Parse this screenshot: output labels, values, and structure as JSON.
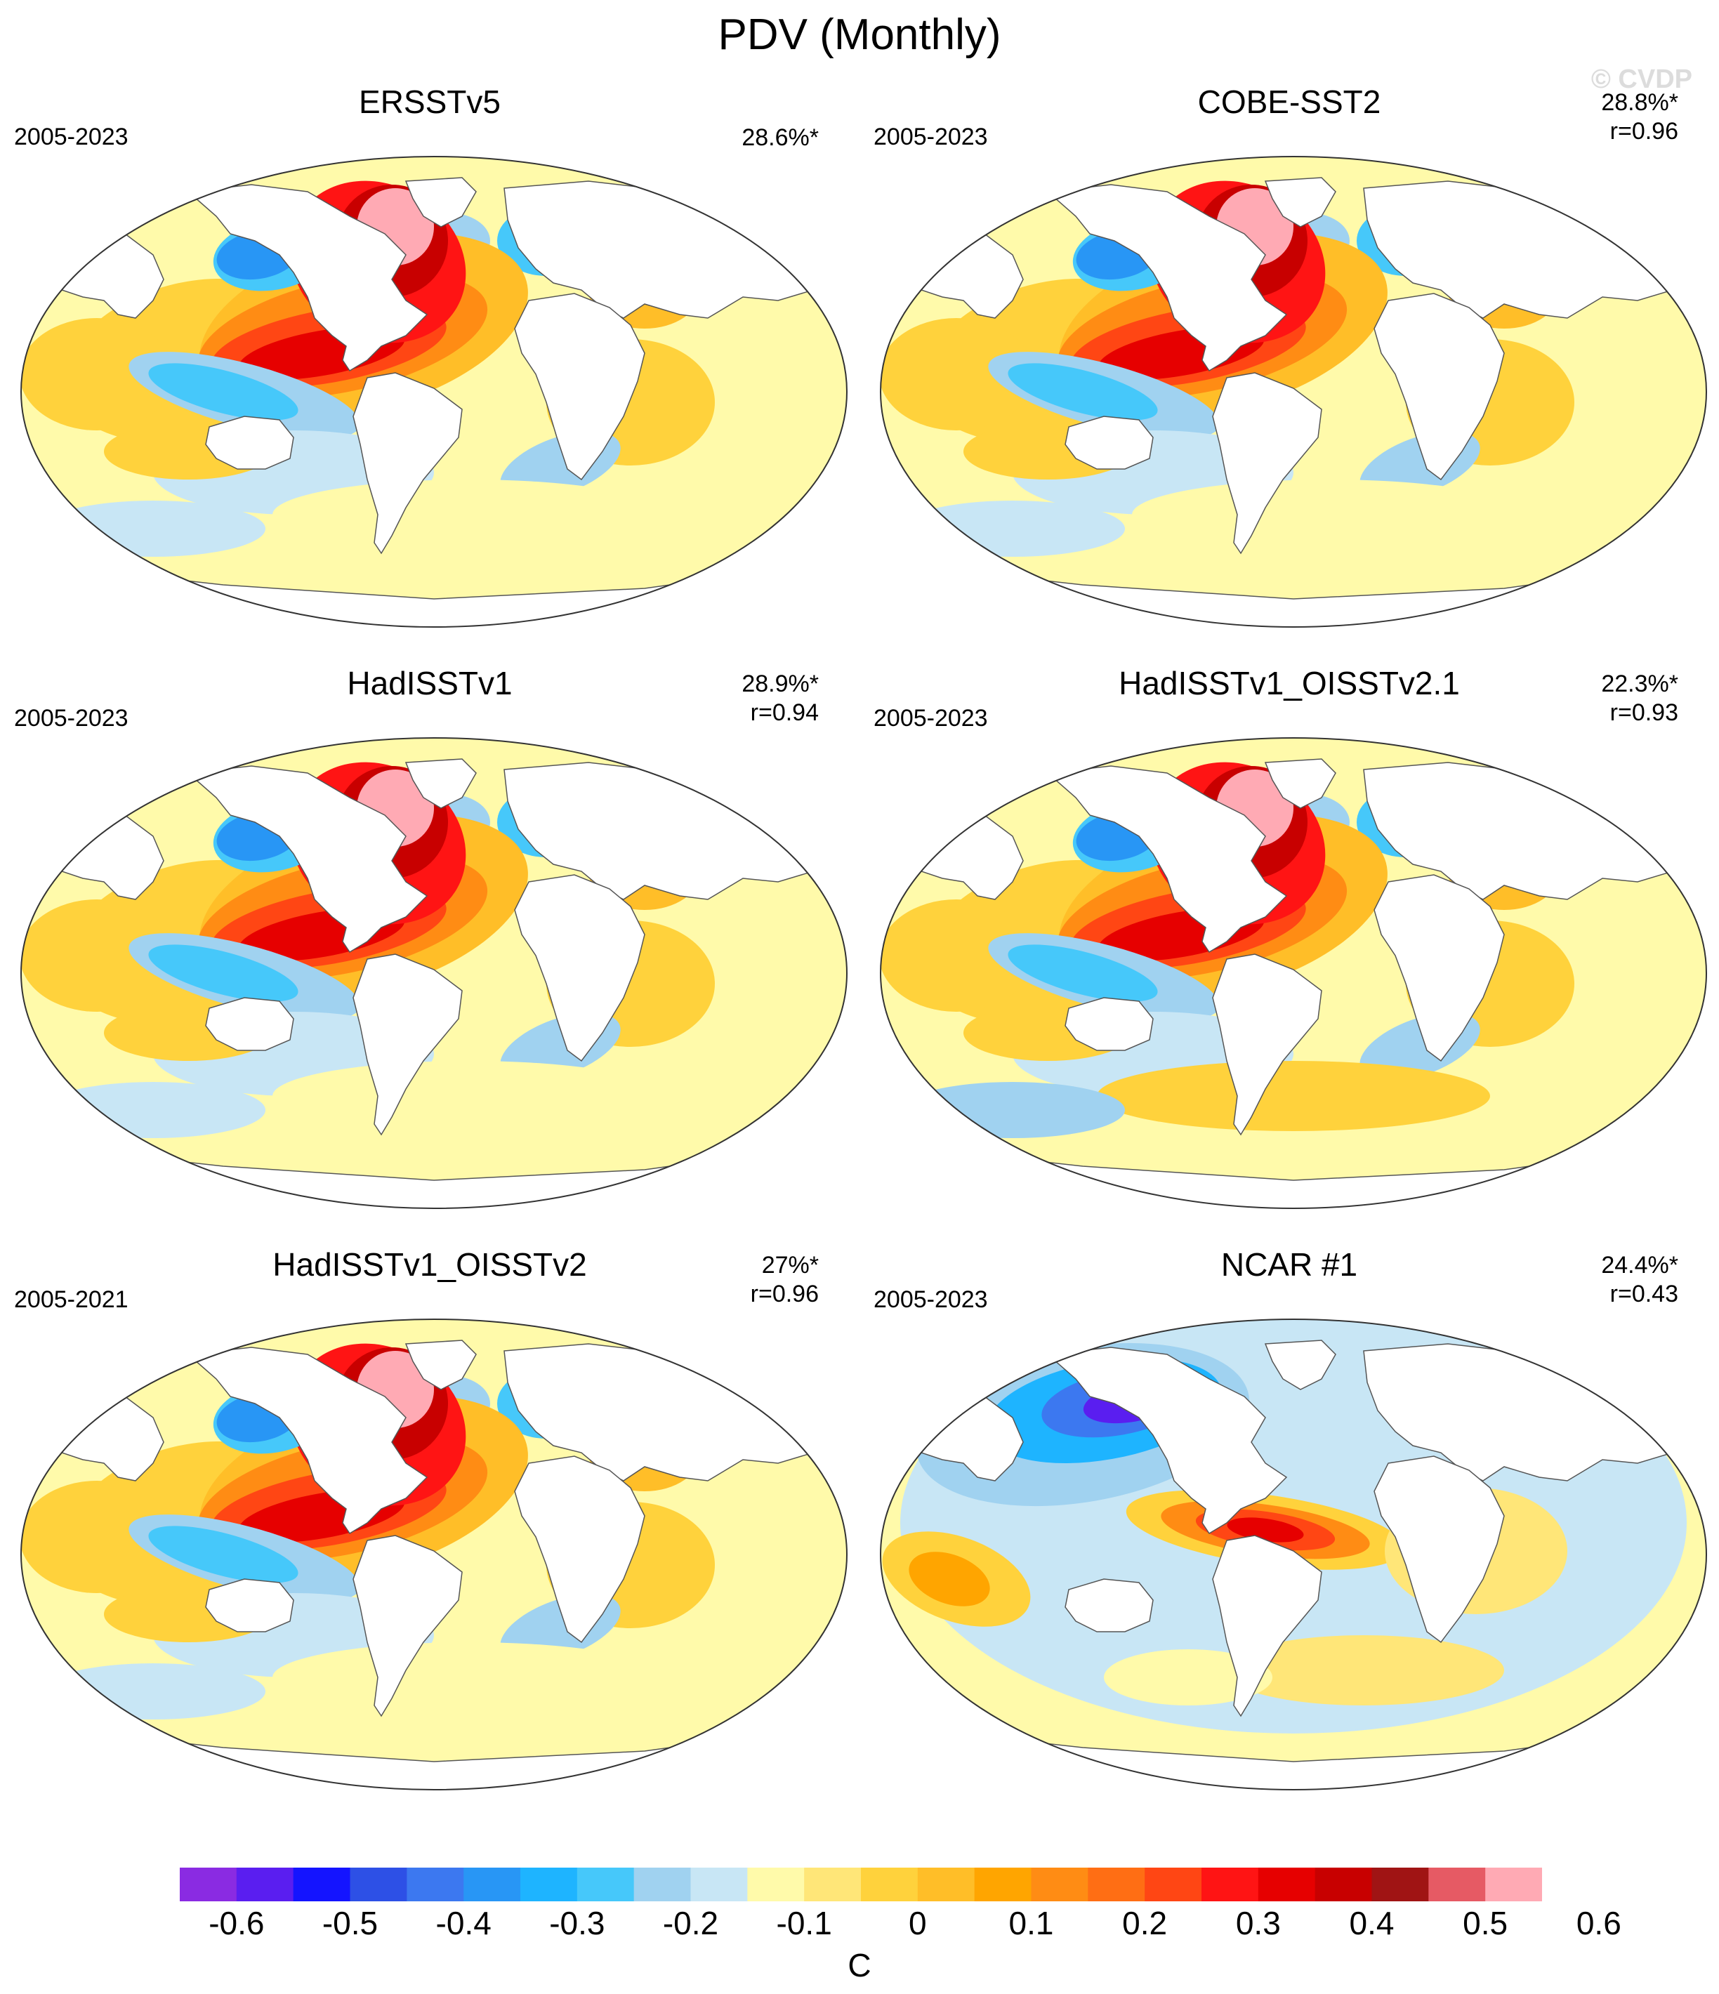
{
  "title": "PDV (Monthly)",
  "watermark": "© CVDP",
  "panels": [
    {
      "name": "ERSSTv5",
      "period": "2005-2023",
      "pct": "28.6%*",
      "r": "",
      "variant": "obs"
    },
    {
      "name": "COBE-SST2",
      "period": "2005-2023",
      "pct": "28.8%*",
      "r": "r=0.96",
      "variant": "obs"
    },
    {
      "name": "HadISSTv1",
      "period": "2005-2023",
      "pct": "28.9%*",
      "r": "r=0.94",
      "variant": "obs"
    },
    {
      "name": "HadISSTv1_OISSTv2.1",
      "period": "2005-2023",
      "pct": "22.3%*",
      "r": "r=0.93",
      "variant": "noisy"
    },
    {
      "name": "HadISSTv1_OISSTv2",
      "period": "2005-2021",
      "pct": "27%*",
      "r": "r=0.96",
      "variant": "obs"
    },
    {
      "name": "NCAR #1",
      "period": "2005-2023",
      "pct": "24.4%*",
      "r": "r=0.43",
      "variant": "model"
    }
  ],
  "colorbar": {
    "colors": [
      "#8a2be2",
      "#5a1ef0",
      "#1414ff",
      "#2d50e6",
      "#3c78f0",
      "#2896f5",
      "#1eb4ff",
      "#46c8fa",
      "#a0d2f0",
      "#c8e6f5",
      "#fffaaa",
      "#ffe678",
      "#ffd23c",
      "#ffbe28",
      "#ffa500",
      "#ff8c14",
      "#ff6e14",
      "#ff4614",
      "#ff1414",
      "#e60000",
      "#c80000",
      "#a01414",
      "#e65a64",
      "#ffaab4"
    ],
    "labels": [
      "-0.6",
      "-0.5",
      "-0.4",
      "-0.3",
      "-0.2",
      "-0.1",
      "0",
      "0.1",
      "0.2",
      "0.3",
      "0.4",
      "0.5",
      "0.6"
    ],
    "units": "C"
  }
}
